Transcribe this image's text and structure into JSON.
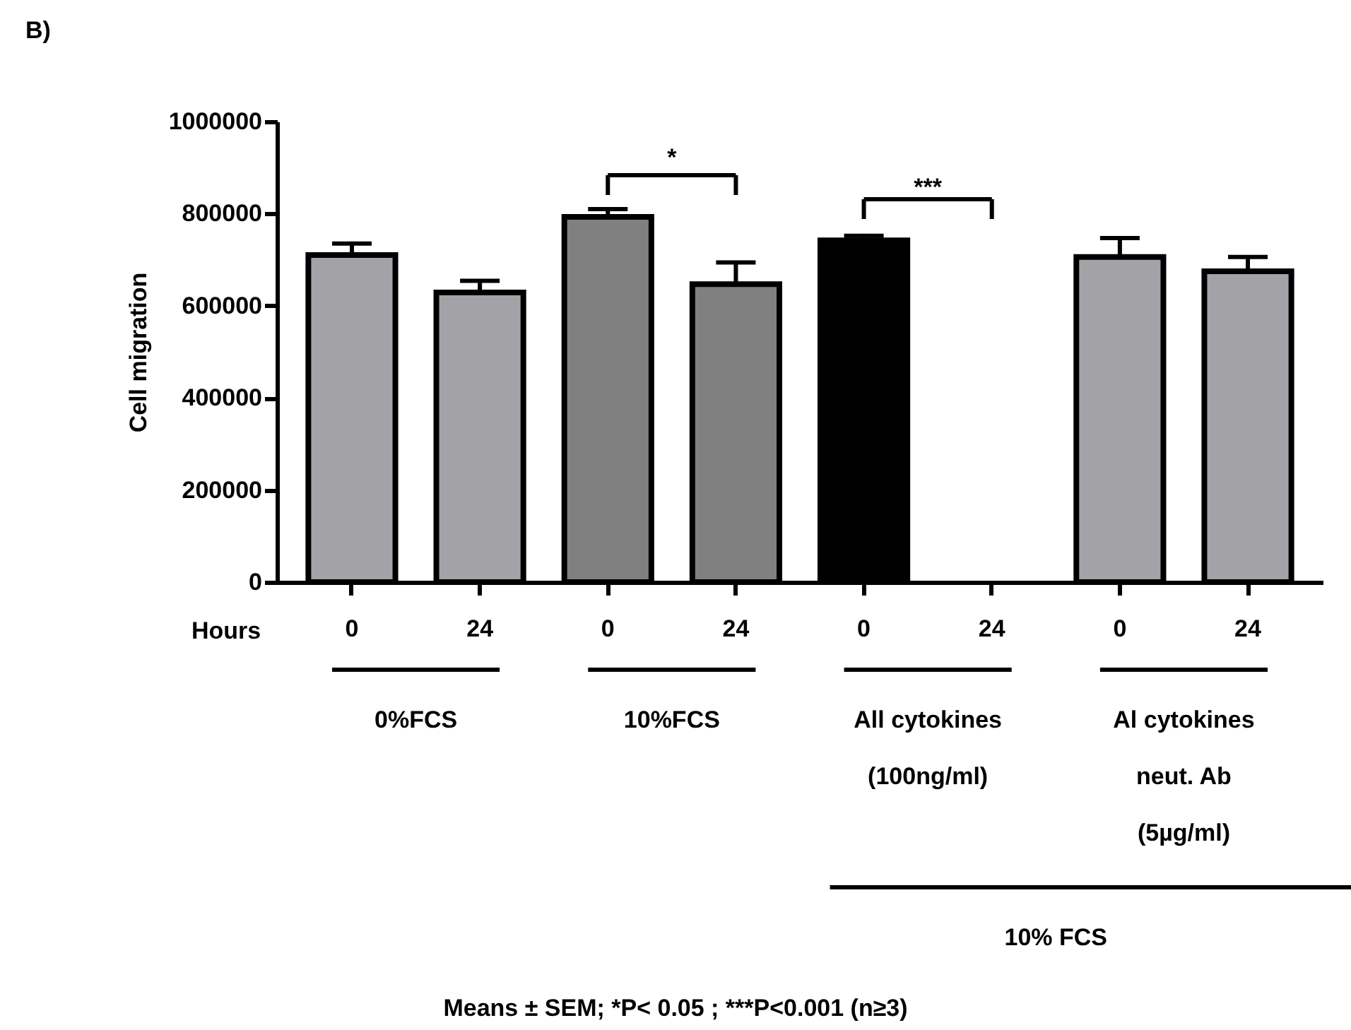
{
  "chart_data": {
    "type": "bar",
    "xlabel": "Hours",
    "ylabel": "Cell migration",
    "categories": [
      "0",
      "24",
      "0",
      "24",
      "0",
      "24",
      "0",
      "24"
    ],
    "values": [
      710000,
      629000,
      793000,
      647000,
      742000,
      null,
      706000,
      675000
    ],
    "errors": [
      25000,
      25000,
      17000,
      47000,
      10000,
      null,
      41000,
      31000
    ],
    "colors": [
      "#a3a2a7",
      "#a3a2a7",
      "#808080",
      "#808080",
      "#000000",
      "#000000",
      "#a3a2a7",
      "#a3a2a7"
    ],
    "ylim": [
      0,
      1000000
    ],
    "yticks": [
      0,
      200000,
      400000,
      600000,
      800000,
      1000000
    ],
    "grid": false,
    "annotations": [
      "B)",
      "*",
      "***",
      "0%FCS",
      "10%FCS",
      "All cytokines\n(100ng/ml)",
      "Al cytokines\nneut. Ab\n(5µg/ml)",
      "10% FCS",
      "Means ± SEM; *P< 0.05 ; ***P<0.001  (n≥3)"
    ]
  }
}
